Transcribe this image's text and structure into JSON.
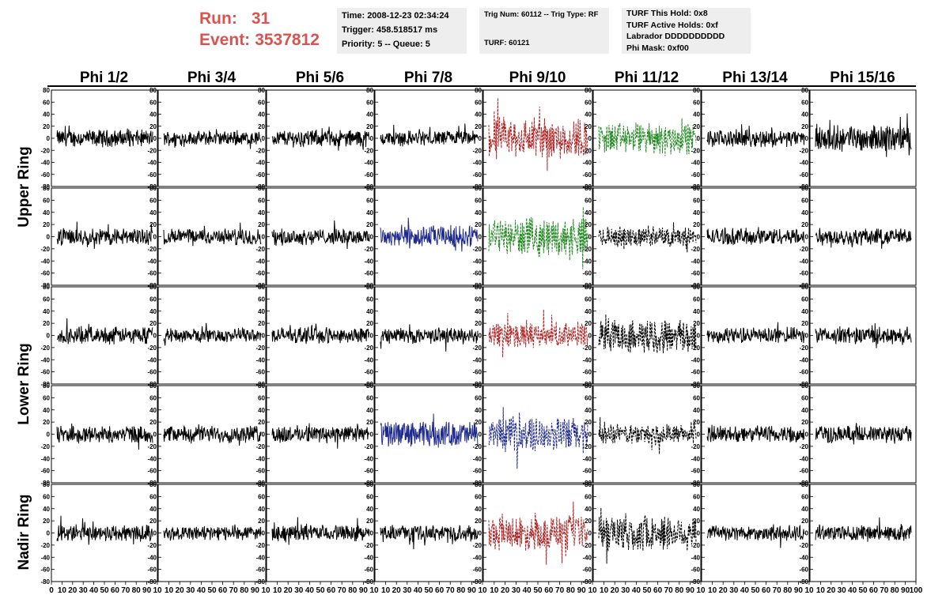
{
  "run_block": {
    "run_label": "Run:",
    "run_value": "31",
    "event_label": "Event:",
    "event_value": "3537812",
    "color": "#d9534f"
  },
  "info_panels": {
    "time": "Time: 2008-12-23 02:34:24",
    "trigger": "Trigger: 458.518517 ms",
    "priority": "Priority: 5 -- Queue: 5",
    "trig_num": "Trig Num: 60112 -- Trig Type: RF",
    "turf": "TURF: 60121",
    "turf_this_hold": "TURF This Hold: 0x8",
    "turf_active_holds": "TURF Active Holds: 0xf",
    "labrador": "Labrador DDDDDDDDDD",
    "phi_mask": "Phi Mask: 0xf00"
  },
  "chart_data": {
    "type": "line",
    "columns": [
      "Phi 1/2",
      "Phi 3/4",
      "Phi 5/6",
      "Phi 7/8",
      "Phi 9/10",
      "Phi 11/12",
      "Phi 13/14",
      "Phi 15/16"
    ],
    "rows": [
      "Upper Ring",
      "Lower Ring",
      "Nadir Ring"
    ],
    "row_label_span": [
      2,
      2,
      1
    ],
    "ylim": [
      -80,
      80
    ],
    "yticks": [
      -80,
      -60,
      -40,
      -20,
      0,
      20,
      40,
      60,
      80
    ],
    "xlim": [
      0,
      100
    ],
    "xtick_labels_first": [
      "0",
      "10",
      "20",
      "30",
      "40",
      "50",
      "60",
      "70",
      "80",
      "90",
      "10"
    ],
    "xtick_labels_mid": [
      "10",
      "20",
      "30",
      "40",
      "50",
      "60",
      "70",
      "80",
      "90",
      "10"
    ],
    "xtick_labels_last": [
      "10",
      "20",
      "30",
      "40",
      "50",
      "60",
      "70",
      "80",
      "90",
      "100"
    ],
    "colors": {
      "default": "#000000",
      "red": "#b22222",
      "green": "#228b22",
      "blue": "#1f2a8f"
    },
    "trace_colors": [
      [
        "default",
        "default",
        "default",
        "default",
        "red",
        "green",
        "default",
        "default"
      ],
      [
        "default",
        "default",
        "default",
        "blue",
        "green",
        "default",
        "default",
        "default"
      ],
      [
        "default",
        "default",
        "default",
        "default",
        "red",
        "default",
        "default",
        "default"
      ],
      [
        "default",
        "default",
        "default",
        "blue",
        "blue",
        "default",
        "default",
        "default"
      ],
      [
        "default",
        "default",
        "default",
        "default",
        "red",
        "default",
        "default",
        "default"
      ]
    ],
    "trace_dashed": [
      [
        false,
        false,
        false,
        false,
        true,
        true,
        false,
        false
      ],
      [
        false,
        false,
        false,
        false,
        true,
        true,
        false,
        false
      ],
      [
        false,
        false,
        false,
        false,
        true,
        true,
        false,
        false
      ],
      [
        false,
        false,
        false,
        false,
        true,
        true,
        false,
        false
      ],
      [
        false,
        false,
        false,
        false,
        true,
        true,
        false,
        false
      ]
    ],
    "trace_amplitude": [
      [
        12,
        10,
        12,
        11,
        30,
        22,
        12,
        18
      ],
      [
        12,
        11,
        11,
        16,
        26,
        14,
        12,
        12
      ],
      [
        12,
        10,
        11,
        11,
        18,
        24,
        11,
        12
      ],
      [
        12,
        12,
        12,
        18,
        24,
        14,
        12,
        12
      ],
      [
        12,
        10,
        11,
        11,
        24,
        26,
        11,
        11
      ]
    ]
  }
}
